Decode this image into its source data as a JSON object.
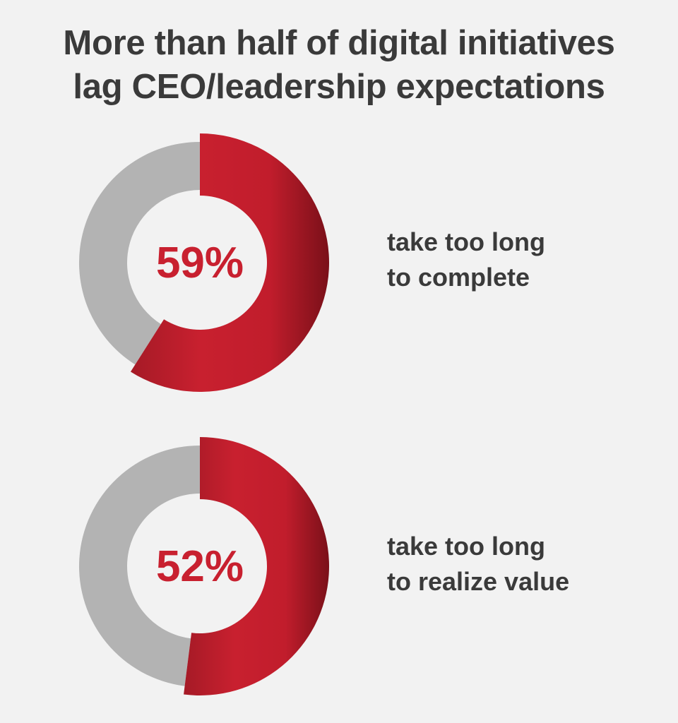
{
  "title": {
    "line1": "More than half of digital initiatives",
    "line2": "lag CEO/leadership expectations"
  },
  "colors": {
    "background": "#f2f2f2",
    "track": "#b3b3b3",
    "accent": "#c8202f",
    "accent_dark": "#7a1019",
    "text": "#3a3a3a"
  },
  "chart_data": [
    {
      "type": "pie",
      "style": "donut",
      "values": [
        59,
        41
      ],
      "value_label": "59%",
      "label_line1": "take too long",
      "label_line2": "to complete"
    },
    {
      "type": "pie",
      "style": "donut",
      "values": [
        52,
        48
      ],
      "value_label": "52%",
      "label_line1": "take too long",
      "label_line2": "to realize value"
    }
  ]
}
